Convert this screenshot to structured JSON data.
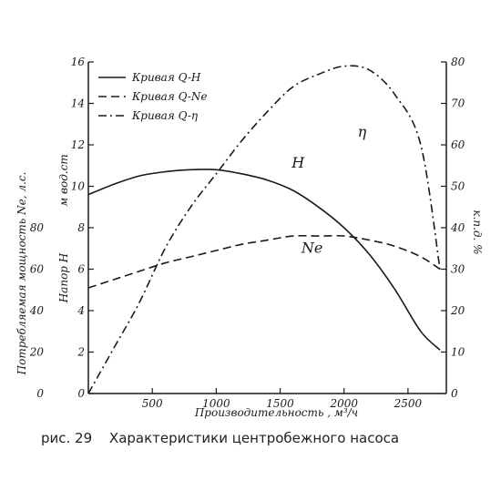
{
  "chart_data": {
    "type": "line",
    "x": [
      0,
      200,
      400,
      600,
      800,
      1000,
      1200,
      1400,
      1600,
      1800,
      2000,
      2200,
      2400,
      2600,
      2750
    ],
    "xlabel": "Производительность , м³/ч",
    "xlim": [
      0,
      2800
    ],
    "x_ticks": [
      "500",
      "1000",
      "1500",
      "2000",
      "2500"
    ],
    "y_left_outer": {
      "label": "Потребляемая мощность Ne, л.с.",
      "ticks": [
        "0",
        "20",
        "40",
        "60",
        "80"
      ]
    },
    "y_left_inner": {
      "label_a": "Напор H",
      "label_b": "м вод.ст",
      "ticks": [
        "0",
        "2",
        "4",
        "6",
        "8",
        "10",
        "12",
        "14",
        "16"
      ],
      "ylim": [
        0,
        16
      ]
    },
    "y_right": {
      "label": "к.п.д. %",
      "ticks": [
        "0",
        "10",
        "20",
        "30",
        "40",
        "50",
        "60",
        "70",
        "80"
      ],
      "ylim": [
        0,
        80
      ]
    },
    "series": [
      {
        "name": "Кривая Q-H",
        "label": "H",
        "values": [
          9.6,
          10.1,
          10.5,
          10.7,
          10.8,
          10.8,
          10.6,
          10.3,
          9.8,
          9.0,
          8.0,
          6.7,
          5.0,
          3.0,
          2.1
        ]
      },
      {
        "name": "Кривая Q-Ne",
        "label": "Ne",
        "values": [
          5.1,
          5.5,
          5.9,
          6.3,
          6.6,
          6.9,
          7.2,
          7.4,
          7.6,
          7.6,
          7.6,
          7.4,
          7.1,
          6.6,
          6.0
        ]
      },
      {
        "name": "Кривая Q-η",
        "label": "η",
        "values": [
          0,
          11,
          22,
          35,
          45,
          53,
          61,
          68,
          74,
          77,
          79,
          78,
          72,
          60,
          30
        ]
      }
    ]
  },
  "caption": {
    "number": "рис. 29",
    "text": "Характеристики центробежного насоса"
  }
}
